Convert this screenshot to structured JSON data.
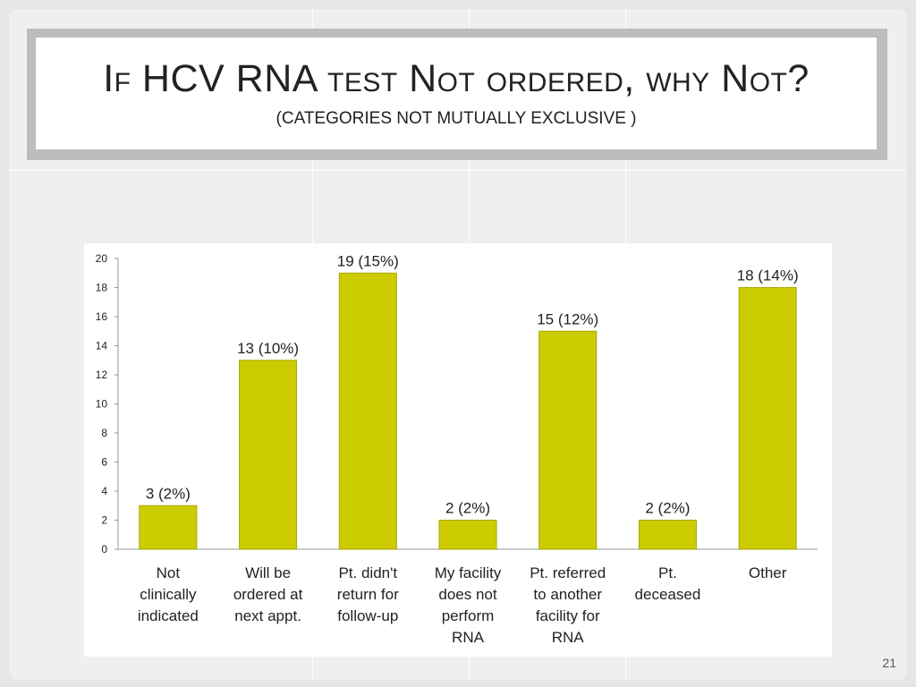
{
  "slide": {
    "title": "If HCV RNA test Not ordered, why Not?",
    "subtitle": "(CATEGORIES NOT MUTUALLY EXCLUSIVE )",
    "page_number": "21"
  },
  "colors": {
    "bar": "#cccc00",
    "bar_edge": "#a8a800",
    "axis": "#9a9a9a",
    "background": "#efefef"
  },
  "chart_data": {
    "type": "bar",
    "categories": [
      [
        "Not",
        "clinically",
        "indicated"
      ],
      [
        "Will be",
        "ordered at",
        "next appt."
      ],
      [
        "Pt. didn't",
        "return for",
        "follow-up"
      ],
      [
        "My facility",
        "does not",
        "perform",
        "RNA"
      ],
      [
        "Pt. referred",
        "to another",
        "facility for",
        "RNA"
      ],
      [
        "Pt.",
        "deceased"
      ],
      [
        "Other"
      ]
    ],
    "values": [
      3,
      13,
      19,
      2,
      15,
      2,
      18
    ],
    "data_labels": [
      "3 (2%)",
      "13 (10%)",
      "19 (15%)",
      "2 (2%)",
      "15 (12%)",
      "2 (2%)",
      "18 (14%)"
    ],
    "ylim": [
      0,
      20
    ],
    "yticks": [
      0,
      2,
      4,
      6,
      8,
      10,
      12,
      14,
      16,
      18,
      20
    ],
    "grid": false,
    "legend": "none"
  }
}
